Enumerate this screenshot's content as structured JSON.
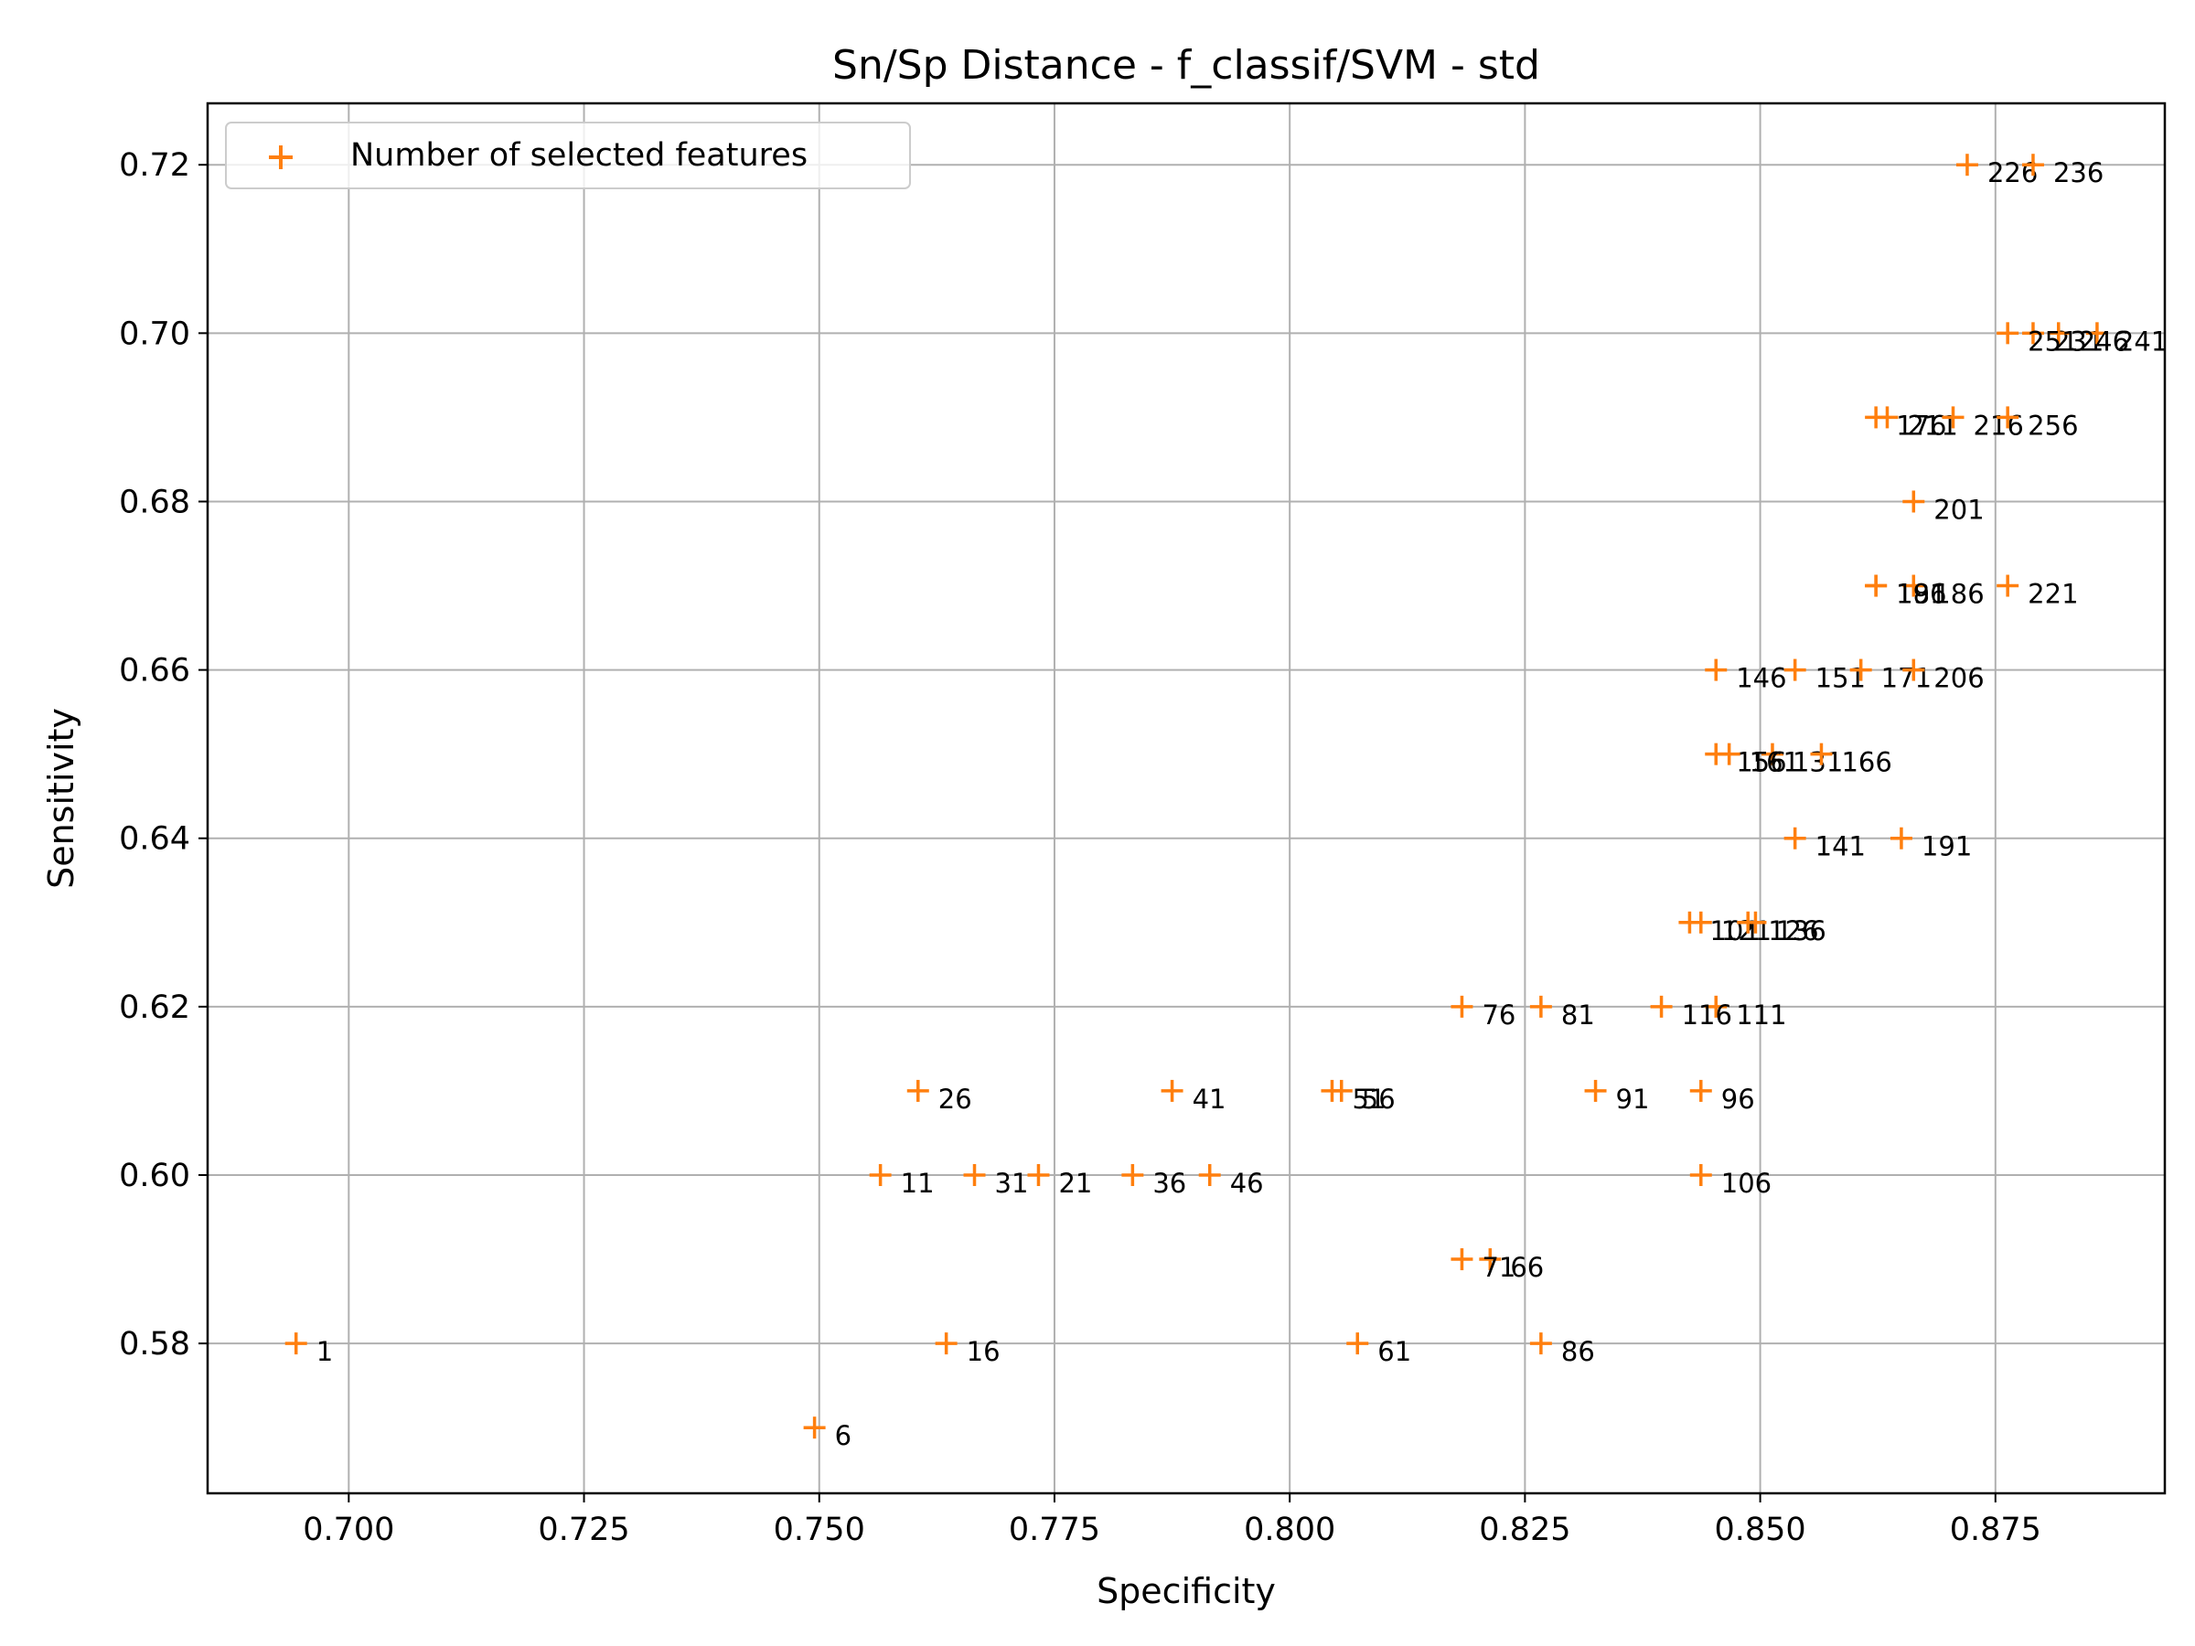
{
  "chart_data": {
    "type": "scatter",
    "title": "Sn/Sp Distance - f_classif/SVM - std",
    "xlabel": "Specificity",
    "ylabel": "Sensitivity",
    "xlim": [
      0.685,
      0.893
    ],
    "ylim": [
      0.5622,
      0.7273
    ],
    "xticks": [
      0.7,
      0.725,
      0.75,
      0.775,
      0.8,
      0.825,
      0.85,
      0.875
    ],
    "xtick_labels": [
      "0.700",
      "0.725",
      "0.750",
      "0.775",
      "0.800",
      "0.825",
      "0.850",
      "0.875"
    ],
    "yticks": [
      0.58,
      0.6,
      0.62,
      0.64,
      0.66,
      0.68,
      0.7,
      0.72
    ],
    "ytick_labels": [
      "0.58",
      "0.60",
      "0.62",
      "0.64",
      "0.66",
      "0.68",
      "0.70",
      "0.72"
    ],
    "grid": true,
    "legend": {
      "position": "top-left",
      "entries": [
        "Number of selected features"
      ]
    },
    "marker_color": "#ff7f0e",
    "series": [
      {
        "name": "Number of selected features",
        "points": [
          {
            "x": 0.6944,
            "y": 0.58,
            "label": "1"
          },
          {
            "x": 0.7495,
            "y": 0.57,
            "label": "6"
          },
          {
            "x": 0.7565,
            "y": 0.6,
            "label": "11"
          },
          {
            "x": 0.7635,
            "y": 0.58,
            "label": "16"
          },
          {
            "x": 0.7733,
            "y": 0.6,
            "label": "21"
          },
          {
            "x": 0.7605,
            "y": 0.61,
            "label": "26"
          },
          {
            "x": 0.7665,
            "y": 0.6,
            "label": "31"
          },
          {
            "x": 0.7833,
            "y": 0.6,
            "label": "36"
          },
          {
            "x": 0.7875,
            "y": 0.61,
            "label": "41"
          },
          {
            "x": 0.7915,
            "y": 0.6,
            "label": "46"
          },
          {
            "x": 0.8045,
            "y": 0.61,
            "label": "51"
          },
          {
            "x": 0.8055,
            "y": 0.61,
            "label": "56"
          },
          {
            "x": 0.8072,
            "y": 0.58,
            "label": "61"
          },
          {
            "x": 0.8213,
            "y": 0.59,
            "label": "66"
          },
          {
            "x": 0.8183,
            "y": 0.59,
            "label": "71"
          },
          {
            "x": 0.8183,
            "y": 0.62,
            "label": "76"
          },
          {
            "x": 0.8267,
            "y": 0.62,
            "label": "81"
          },
          {
            "x": 0.8267,
            "y": 0.58,
            "label": "86"
          },
          {
            "x": 0.8325,
            "y": 0.61,
            "label": "91"
          },
          {
            "x": 0.8437,
            "y": 0.61,
            "label": "96"
          },
          {
            "x": 0.8425,
            "y": 0.63,
            "label": "101"
          },
          {
            "x": 0.8437,
            "y": 0.6,
            "label": "106"
          },
          {
            "x": 0.8453,
            "y": 0.62,
            "label": "111"
          },
          {
            "x": 0.8395,
            "y": 0.62,
            "label": "116"
          },
          {
            "x": 0.8437,
            "y": 0.63,
            "label": "121"
          },
          {
            "x": 0.8487,
            "y": 0.63,
            "label": "126"
          },
          {
            "x": 0.8513,
            "y": 0.65,
            "label": "131"
          },
          {
            "x": 0.8495,
            "y": 0.63,
            "label": "136"
          },
          {
            "x": 0.8537,
            "y": 0.64,
            "label": "141"
          },
          {
            "x": 0.8453,
            "y": 0.66,
            "label": "146"
          },
          {
            "x": 0.8537,
            "y": 0.66,
            "label": "151"
          },
          {
            "x": 0.8453,
            "y": 0.65,
            "label": "156"
          },
          {
            "x": 0.8467,
            "y": 0.65,
            "label": "161"
          },
          {
            "x": 0.8565,
            "y": 0.65,
            "label": "166"
          },
          {
            "x": 0.8607,
            "y": 0.66,
            "label": "171"
          },
          {
            "x": 0.8623,
            "y": 0.69,
            "label": "176"
          },
          {
            "x": 0.8623,
            "y": 0.67,
            "label": "181"
          },
          {
            "x": 0.8663,
            "y": 0.67,
            "label": "186"
          },
          {
            "x": 0.865,
            "y": 0.64,
            "label": "191"
          },
          {
            "x": 0.8623,
            "y": 0.67,
            "label": "196"
          },
          {
            "x": 0.8663,
            "y": 0.68,
            "label": "201"
          },
          {
            "x": 0.8663,
            "y": 0.66,
            "label": "206"
          },
          {
            "x": 0.8635,
            "y": 0.69,
            "label": "211"
          },
          {
            "x": 0.8705,
            "y": 0.69,
            "label": "216"
          },
          {
            "x": 0.8763,
            "y": 0.67,
            "label": "221"
          },
          {
            "x": 0.872,
            "y": 0.72,
            "label": "226"
          },
          {
            "x": 0.879,
            "y": 0.7,
            "label": "231"
          },
          {
            "x": 0.879,
            "y": 0.72,
            "label": "236"
          },
          {
            "x": 0.8858,
            "y": 0.7,
            "label": "241"
          },
          {
            "x": 0.8817,
            "y": 0.7,
            "label": "246"
          },
          {
            "x": 0.8763,
            "y": 0.7,
            "label": "251"
          },
          {
            "x": 0.8763,
            "y": 0.69,
            "label": "256"
          }
        ]
      }
    ]
  }
}
